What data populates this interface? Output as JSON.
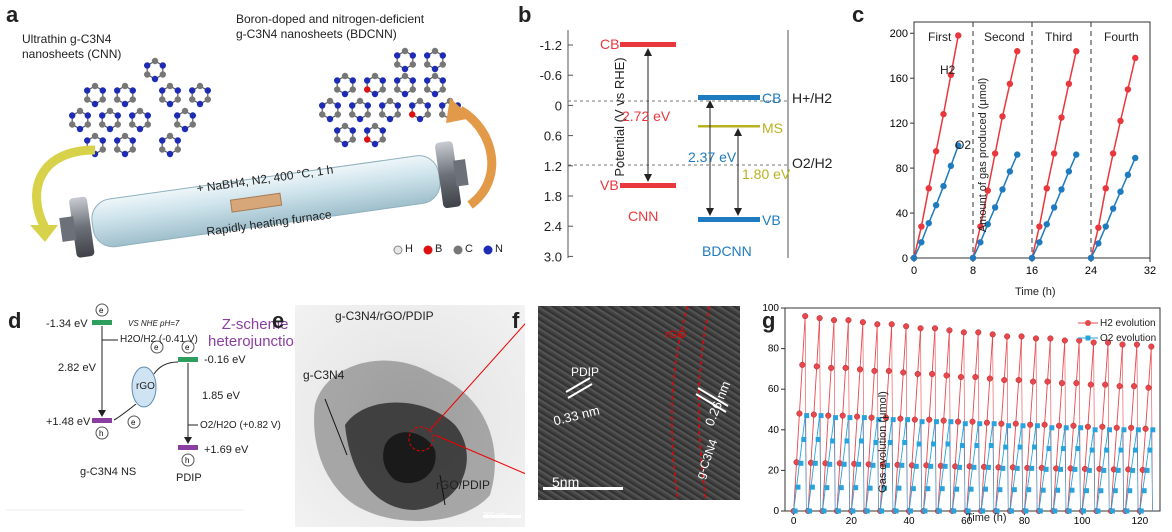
{
  "panels": {
    "a": {
      "label": "a",
      "cnn_title_1": "Ultrathin g-C3N4",
      "cnn_title_2": "nanosheets (CNN)",
      "bdcnn_title_1": "Boron-doped and nitrogen-deficient",
      "bdcnn_title_2": "g-C3N4 nanosheets (BDCNN)",
      "condition": "+ NaBH4, N2, 400 °C, 1 h",
      "furnace": "Rapidly heating furnace",
      "legend": [
        "H",
        "B",
        "C",
        "N"
      ]
    },
    "b": {
      "label": "b",
      "ylabel": "Potential (V vs RHE)",
      "yticks": [
        "-1.2",
        "-0.6",
        "0",
        "0.6",
        "1.2",
        "1.8",
        "2.4",
        "3.0"
      ],
      "cnn_cb": "CB",
      "cnn_vb": "VB",
      "cnn_gap": "2.72 eV",
      "cnn_name": "CNN",
      "bd_cb": "CB",
      "bd_ms": "MS",
      "bd_vb": "VB",
      "bd_gap1": "2.37 eV",
      "bd_gap2": "1.80 eV",
      "bd_name": "BDCNN",
      "h_ref": "H+/H2",
      "o_ref": "O2/H2C"
    },
    "c": {
      "label": "c",
      "ylabel": "Amount of gas produced (μmol)",
      "xlabel": "Time (h)",
      "run_labels": [
        "First",
        "Second",
        "Third",
        "Fourth"
      ],
      "h2_label": "H2",
      "o2_label": "O2"
    },
    "d": {
      "label": "d",
      "title_1": "Z-scheme",
      "title_2": "heterojunction",
      "nhe": "VS NHE pH=7",
      "cb1": "-1.34 eV",
      "h2ref": "H2O/H2 (-0.41 V)",
      "gap1": "2.82 eV",
      "vb1": "+1.48 eV",
      "rgo": "rGO",
      "cb2": "-0.16 eV",
      "gap2": "1.85 eV",
      "o2ref": "O2/H2O (+0.82 V)",
      "vb2": "+1.69 eV",
      "name1": "g-C3N4 NS",
      "name2": "PDIP"
    },
    "e": {
      "label": "e",
      "title": "g-C3N4/rGO/PDIP",
      "ann1": "g-C3N4",
      "ann2": "rGO/PDIP",
      "scale": "200 nm"
    },
    "f": {
      "label": "f",
      "pdip": "PDIP",
      "rgo": "rGO",
      "d1": "0.33 nm",
      "d2": "0.26 nm",
      "cn": "g-C3N4",
      "scale": "5nm"
    },
    "g": {
      "label": "g",
      "ylabel": "Gas evolution (μmol)",
      "xlabel": "Time (h)",
      "legend_h2": "H2 evolution",
      "legend_o2": "O2 evolution"
    }
  },
  "chart_data": [
    {
      "type": "line",
      "panel": "c",
      "xlabel": "Time (h)",
      "ylabel": "Amount of gas produced (μmol)",
      "xlim": [
        0,
        32
      ],
      "ylim": [
        0,
        210
      ],
      "xticks": [
        0,
        8,
        16,
        24,
        32
      ],
      "yticks": [
        0,
        40,
        80,
        120,
        160,
        200
      ],
      "run_boundaries": [
        0,
        8,
        16,
        24
      ],
      "series": [
        {
          "name": "H2",
          "color": "#e8383d",
          "runs": [
            [
              [
                0,
                0
              ],
              [
                1,
                28
              ],
              [
                2,
                62
              ],
              [
                3,
                95
              ],
              [
                4,
                128
              ],
              [
                5,
                163
              ],
              [
                6,
                198
              ]
            ],
            [
              [
                8,
                0
              ],
              [
                9,
                28
              ],
              [
                10,
                60
              ],
              [
                11,
                93
              ],
              [
                12,
                126
              ],
              [
                13,
                155
              ],
              [
                14,
                184
              ]
            ],
            [
              [
                16,
                0
              ],
              [
                17,
                28
              ],
              [
                18,
                62
              ],
              [
                19,
                93
              ],
              [
                20,
                125
              ],
              [
                21,
                155
              ],
              [
                22,
                184
              ]
            ],
            [
              [
                24,
                0
              ],
              [
                25,
                27
              ],
              [
                26,
                62
              ],
              [
                27,
                93
              ],
              [
                28,
                122
              ],
              [
                29,
                150
              ],
              [
                30,
                178
              ]
            ]
          ]
        },
        {
          "name": "O2",
          "color": "#1f7bbf",
          "runs": [
            [
              [
                0,
                0
              ],
              [
                1,
                14
              ],
              [
                2,
                31
              ],
              [
                3,
                47
              ],
              [
                4,
                64
              ],
              [
                5,
                82
              ],
              [
                6,
                100
              ]
            ],
            [
              [
                8,
                0
              ],
              [
                9,
                14
              ],
              [
                10,
                30
              ],
              [
                11,
                45
              ],
              [
                12,
                61
              ],
              [
                13,
                77
              ],
              [
                14,
                92
              ]
            ],
            [
              [
                16,
                0
              ],
              [
                17,
                14
              ],
              [
                18,
                30
              ],
              [
                19,
                45
              ],
              [
                20,
                61
              ],
              [
                21,
                77
              ],
              [
                22,
                92
              ]
            ],
            [
              [
                24,
                0
              ],
              [
                25,
                13
              ],
              [
                26,
                28
              ],
              [
                27,
                44
              ],
              [
                28,
                59
              ],
              [
                29,
                74
              ],
              [
                30,
                89
              ]
            ]
          ]
        }
      ]
    },
    {
      "type": "line",
      "panel": "g",
      "xlabel": "Time (h)",
      "ylabel": "Gas evolution (μmol)",
      "xlim": [
        -3,
        127
      ],
      "ylim": [
        0,
        100
      ],
      "xticks": [
        0,
        20,
        40,
        60,
        80,
        100,
        120
      ],
      "yticks": [
        0,
        20,
        40,
        60,
        80,
        100
      ],
      "cycle_length_h": 5,
      "cycles": 25,
      "points_per_cycle": 5,
      "series": [
        {
          "name": "H2 evolution",
          "color": "#e8474c",
          "cycle_peaks": [
            96,
            95,
            94,
            94,
            93,
            92,
            92,
            91,
            90,
            90,
            89,
            88,
            88,
            87,
            86,
            86,
            85,
            85,
            84,
            84,
            83,
            83,
            82,
            82,
            81
          ]
        },
        {
          "name": "O2 evolution",
          "color": "#29a3dd",
          "cycle_peaks": [
            47,
            47,
            46,
            46,
            46,
            45,
            45,
            45,
            44,
            44,
            44,
            43,
            43,
            43,
            42,
            42,
            42,
            41,
            41,
            41,
            40,
            40,
            40,
            40,
            40
          ]
        }
      ]
    }
  ]
}
